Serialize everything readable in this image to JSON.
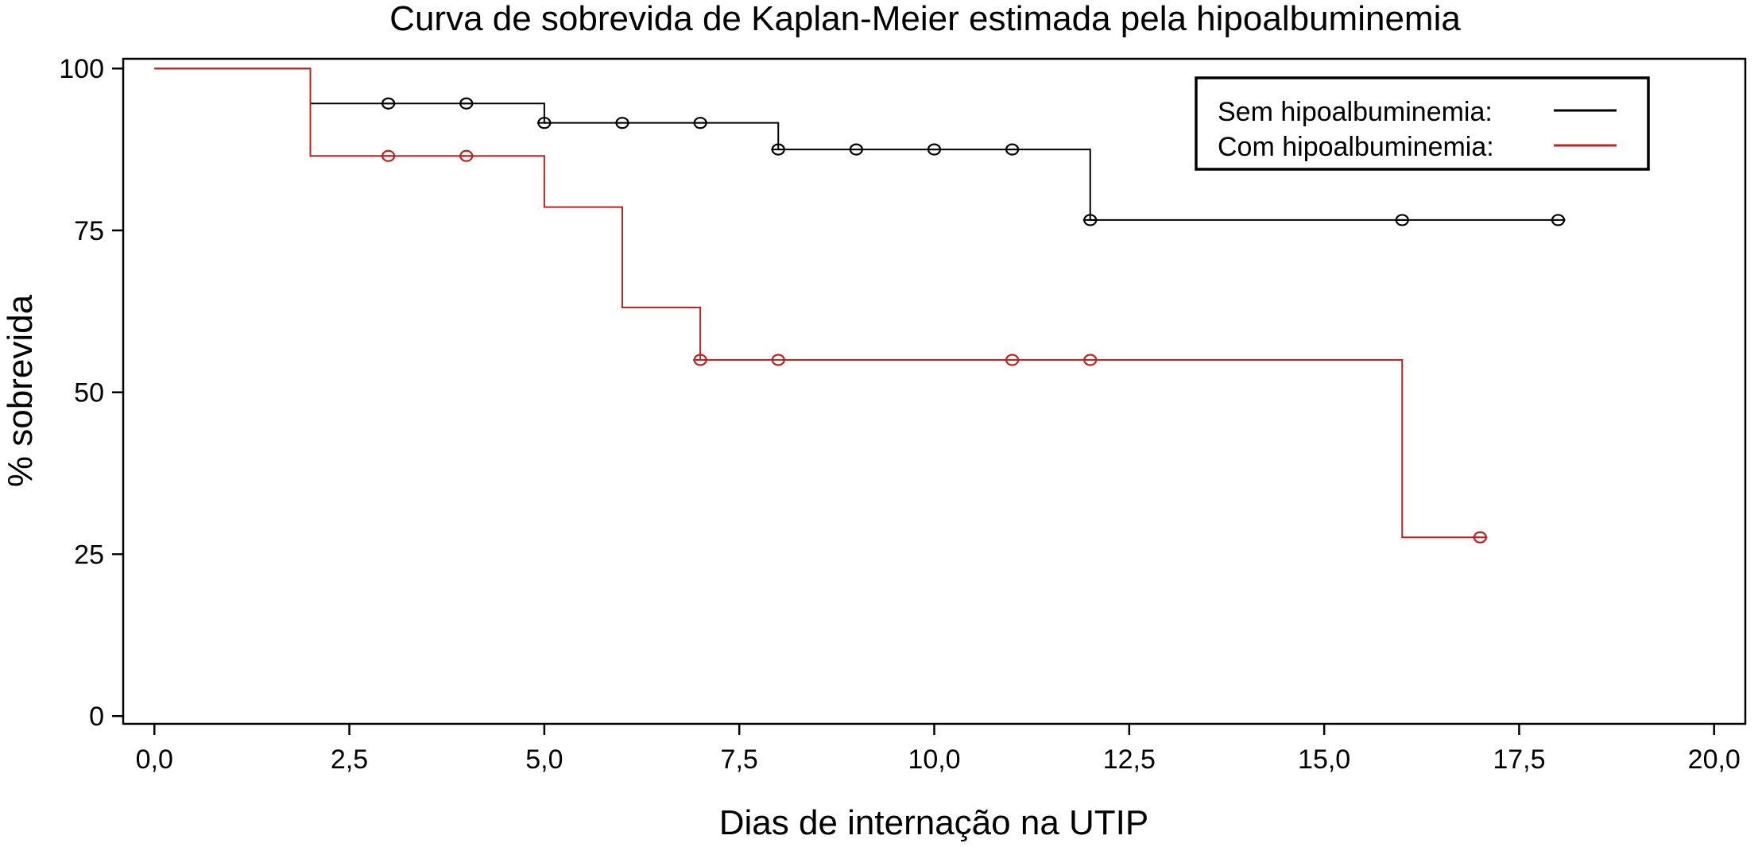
{
  "chart_data": {
    "type": "line",
    "subtype": "kaplan-meier step curve with censoring marks",
    "title": "Curva de sobrevida de Kaplan-Meier estimada pela hipoalbuminemia",
    "xlabel": "Dias de internação na UTIP",
    "ylabel": "% sobrevida",
    "xlim": [
      -0.4,
      20.4
    ],
    "ylim": [
      -1.2,
      101.5
    ],
    "xticks": [
      0,
      2.5,
      5,
      7.5,
      10,
      12.5,
      15,
      17.5,
      20
    ],
    "xtick_labels": [
      "0,0",
      "2,5",
      "5,0",
      "7,5",
      "10,0",
      "12,5",
      "15,0",
      "17,5",
      "20,0"
    ],
    "yticks": [
      0,
      25,
      50,
      75,
      100
    ],
    "ytick_labels": [
      "0",
      "25",
      "50",
      "75",
      "100"
    ],
    "grid": false,
    "legend_position": "top-right",
    "series": [
      {
        "name": "Sem hipoalbuminemia:",
        "color": "#000000",
        "steps": [
          [
            0,
            100
          ],
          [
            2,
            94.6
          ],
          [
            5,
            91.6
          ],
          [
            8,
            87.5
          ],
          [
            12,
            76.6
          ]
        ],
        "end_x": 18,
        "censored": [
          [
            3,
            94.6
          ],
          [
            4,
            94.6
          ],
          [
            5,
            91.6
          ],
          [
            6,
            91.6
          ],
          [
            7,
            91.6
          ],
          [
            8,
            87.5
          ],
          [
            9,
            87.5
          ],
          [
            10,
            87.5
          ],
          [
            11,
            87.5
          ],
          [
            12,
            76.6
          ],
          [
            16,
            76.6
          ],
          [
            18,
            76.6
          ]
        ]
      },
      {
        "name": "Com hipoalbuminemia:",
        "color": "#c0211e",
        "steps": [
          [
            0,
            100
          ],
          [
            2,
            86.5
          ],
          [
            5,
            78.6
          ],
          [
            6,
            63.1
          ],
          [
            7,
            55.0
          ],
          [
            16,
            27.6
          ]
        ],
        "end_x": 17,
        "censored": [
          [
            3,
            86.5
          ],
          [
            4,
            86.5
          ],
          [
            7,
            55.0
          ],
          [
            8,
            55.0
          ],
          [
            11,
            55.0
          ],
          [
            12,
            55.0
          ],
          [
            17,
            27.6
          ]
        ]
      }
    ]
  }
}
